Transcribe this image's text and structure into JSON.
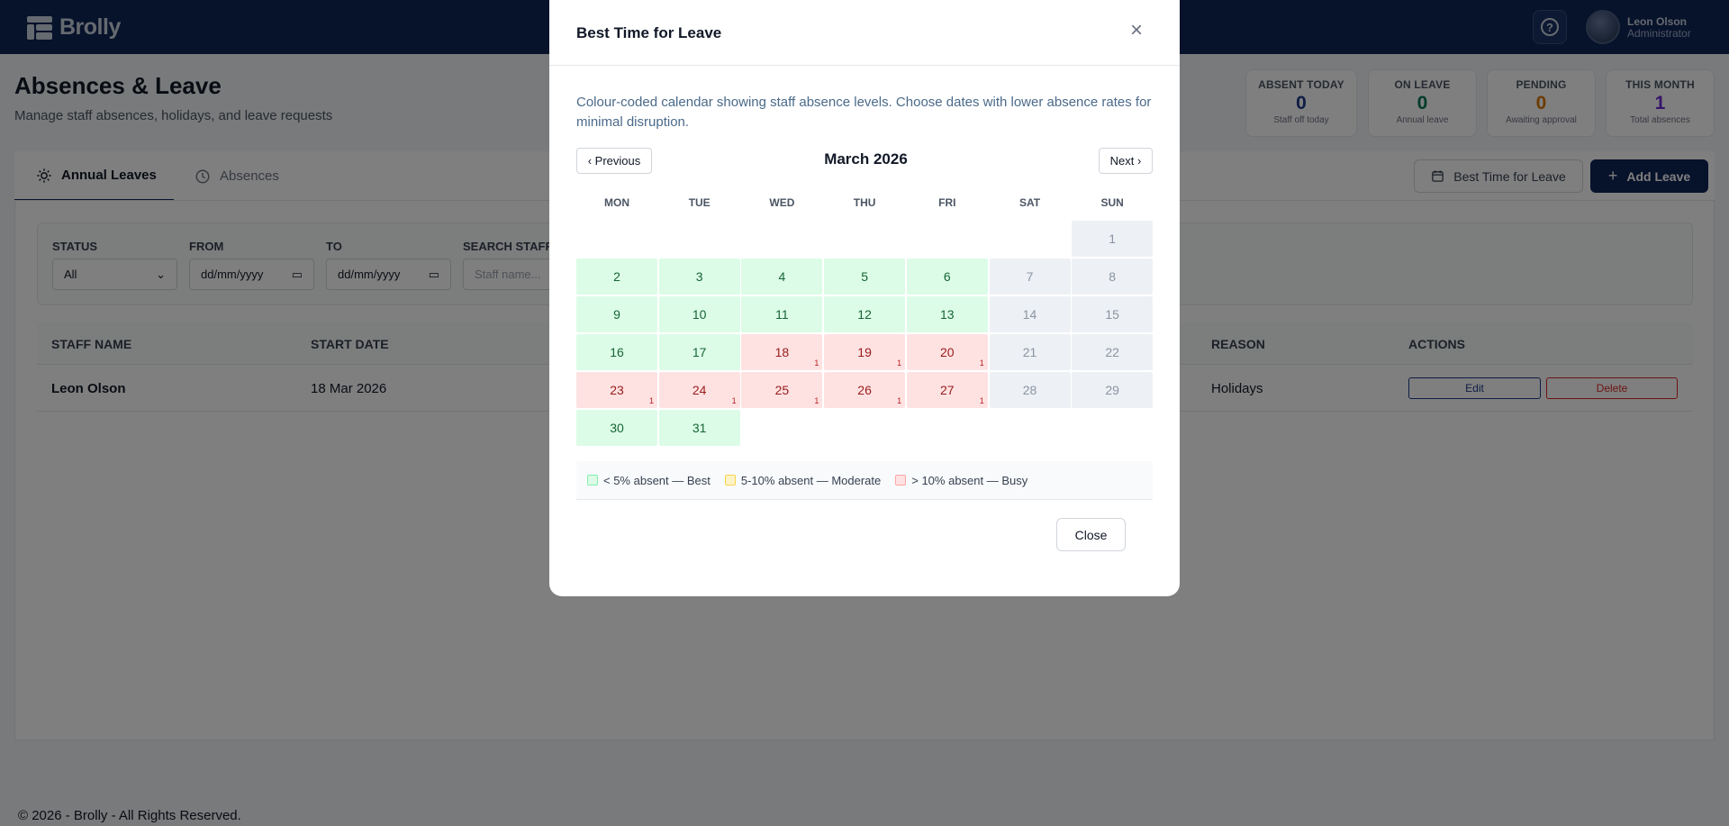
{
  "app": {
    "name": "Brolly",
    "user_name": "Leon Olson",
    "user_role": "Administrator"
  },
  "page": {
    "title": "Absences & Leave",
    "subtitle": "Manage staff absences, holidays, and leave requests"
  },
  "stats": [
    {
      "label": "ABSENT TODAY",
      "value": "0",
      "sub": "Staff off today",
      "color": "#1e3a8a"
    },
    {
      "label": "ON LEAVE",
      "value": "0",
      "sub": "Annual leave",
      "color": "#047857"
    },
    {
      "label": "PENDING",
      "value": "0",
      "sub": "Awaiting approval",
      "color": "#d97706"
    },
    {
      "label": "THIS MONTH",
      "value": "1",
      "sub": "Total absences",
      "color": "#6d28d9"
    }
  ],
  "tabs": {
    "annual": "Annual Leaves",
    "absences": "Absences"
  },
  "actions": {
    "best_time": "Best Time for Leave",
    "add_leave": "Add Leave"
  },
  "filters": {
    "status_label": "STATUS",
    "status_value": "All",
    "from_label": "FROM",
    "from_placeholder": "dd/mm/yyyy",
    "to_label": "TO",
    "to_placeholder": "dd/mm/yyyy",
    "search_label": "SEARCH STAFF",
    "search_placeholder": "Staff name..."
  },
  "table": {
    "headers": [
      "STAFF NAME",
      "START DATE",
      "REASON",
      "ACTIONS"
    ],
    "rows": [
      {
        "staff": "Leon Olson",
        "start": "18 Mar 2026",
        "reason": "Holidays",
        "edit": "Edit",
        "delete": "Delete"
      }
    ]
  },
  "footer": "© 2026 - Brolly - All Rights Reserved.",
  "modal": {
    "title": "Best Time for Leave",
    "description": "Colour-coded calendar showing staff absence levels. Choose dates with lower absence rates for minimal disruption.",
    "prev": "‹ Previous",
    "next": "Next ›",
    "month": "March 2026",
    "weekdays": [
      "MON",
      "TUE",
      "WED",
      "THU",
      "FRI",
      "SAT",
      "SUN"
    ],
    "start_offset": 6,
    "days": [
      {
        "d": "1",
        "s": "weekend"
      },
      {
        "d": "2",
        "s": "best"
      },
      {
        "d": "3",
        "s": "best"
      },
      {
        "d": "4",
        "s": "best"
      },
      {
        "d": "5",
        "s": "best"
      },
      {
        "d": "6",
        "s": "best"
      },
      {
        "d": "7",
        "s": "weekend"
      },
      {
        "d": "8",
        "s": "weekend"
      },
      {
        "d": "9",
        "s": "best"
      },
      {
        "d": "10",
        "s": "best"
      },
      {
        "d": "11",
        "s": "best"
      },
      {
        "d": "12",
        "s": "best"
      },
      {
        "d": "13",
        "s": "best"
      },
      {
        "d": "14",
        "s": "weekend"
      },
      {
        "d": "15",
        "s": "weekend"
      },
      {
        "d": "16",
        "s": "best"
      },
      {
        "d": "17",
        "s": "best"
      },
      {
        "d": "18",
        "s": "busy",
        "n": "1"
      },
      {
        "d": "19",
        "s": "busy",
        "n": "1"
      },
      {
        "d": "20",
        "s": "busy",
        "n": "1"
      },
      {
        "d": "21",
        "s": "weekend"
      },
      {
        "d": "22",
        "s": "weekend"
      },
      {
        "d": "23",
        "s": "busy",
        "n": "1"
      },
      {
        "d": "24",
        "s": "busy",
        "n": "1"
      },
      {
        "d": "25",
        "s": "busy",
        "n": "1"
      },
      {
        "d": "26",
        "s": "busy",
        "n": "1"
      },
      {
        "d": "27",
        "s": "busy",
        "n": "1"
      },
      {
        "d": "28",
        "s": "weekend"
      },
      {
        "d": "29",
        "s": "weekend"
      },
      {
        "d": "30",
        "s": "best"
      },
      {
        "d": "31",
        "s": "best"
      }
    ],
    "legend": [
      {
        "label": "< 5% absent — Best",
        "color": "#dcfce7",
        "border": "#86efac"
      },
      {
        "label": "5-10% absent — Moderate",
        "color": "#fef3c7",
        "border": "#fcd34d"
      },
      {
        "label": "> 10% absent — Busy",
        "color": "#fee2e2",
        "border": "#fca5a5"
      }
    ],
    "close": "Close"
  }
}
